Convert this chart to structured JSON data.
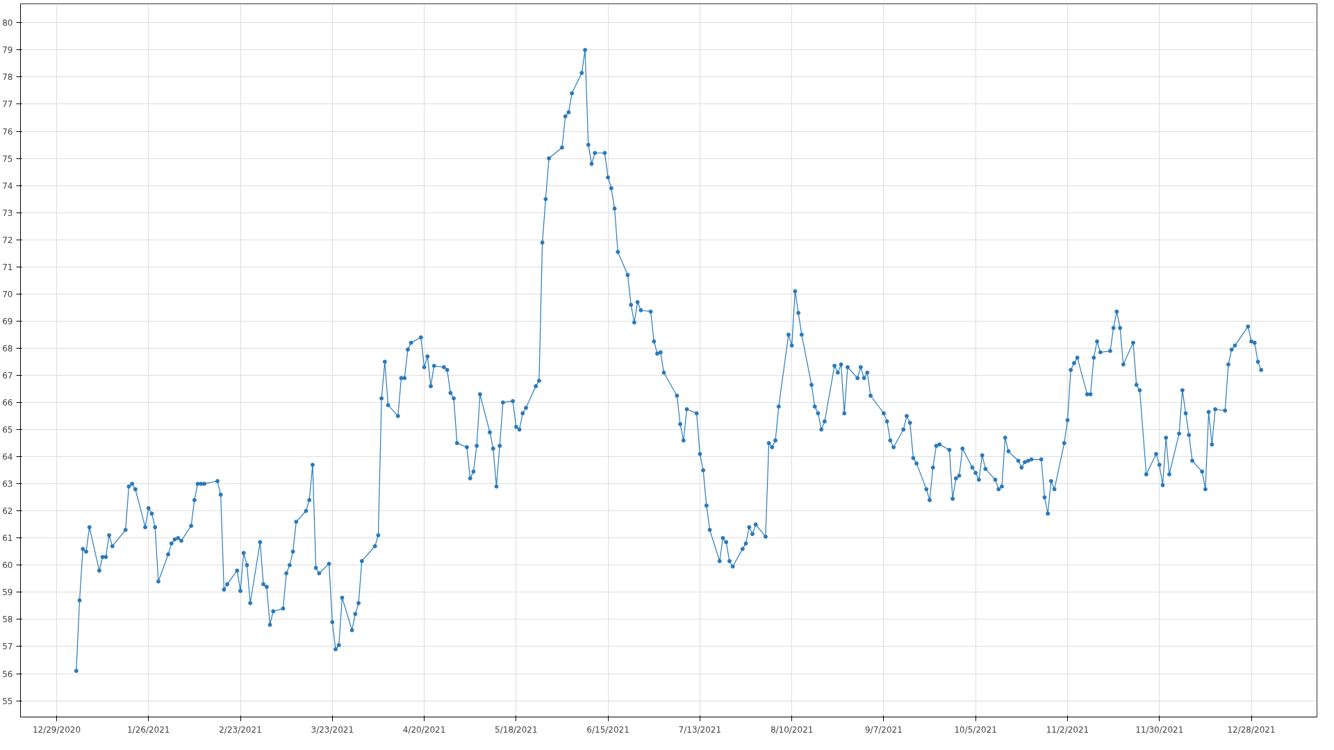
{
  "chart_data": {
    "type": "line",
    "marker": "circle",
    "line_style": "solid",
    "grid": true,
    "xlim": [
      "2020-12-18",
      "2022-01-17"
    ],
    "ylim": [
      54.4,
      80.7
    ],
    "yticks": [
      55,
      56,
      57,
      58,
      59,
      60,
      61,
      62,
      63,
      64,
      65,
      66,
      67,
      68,
      69,
      70,
      71,
      72,
      73,
      74,
      75,
      76,
      77,
      78,
      79,
      80
    ],
    "xticks": [
      {
        "value": "2020-12-29",
        "label": "12/29/2020"
      },
      {
        "value": "2021-01-26",
        "label": "1/26/2021"
      },
      {
        "value": "2021-02-23",
        "label": "2/23/2021"
      },
      {
        "value": "2021-03-23",
        "label": "3/23/2021"
      },
      {
        "value": "2021-04-20",
        "label": "4/20/2021"
      },
      {
        "value": "2021-05-18",
        "label": "5/18/2021"
      },
      {
        "value": "2021-06-15",
        "label": "6/15/2021"
      },
      {
        "value": "2021-07-13",
        "label": "7/13/2021"
      },
      {
        "value": "2021-08-10",
        "label": "8/10/2021"
      },
      {
        "value": "2021-09-07",
        "label": "9/7/2021"
      },
      {
        "value": "2021-10-05",
        "label": "10/5/2021"
      },
      {
        "value": "2021-11-02",
        "label": "11/2/2021"
      },
      {
        "value": "2021-11-30",
        "label": "11/30/2021"
      },
      {
        "value": "2021-12-28",
        "label": "12/28/2021"
      }
    ],
    "series": [
      {
        "color": "#2a7ab9",
        "x": [
          "2021-01-04",
          "2021-01-05",
          "2021-01-06",
          "2021-01-07",
          "2021-01-08",
          "2021-01-11",
          "2021-01-12",
          "2021-01-13",
          "2021-01-14",
          "2021-01-15",
          "2021-01-19",
          "2021-01-20",
          "2021-01-21",
          "2021-01-22",
          "2021-01-25",
          "2021-01-26",
          "2021-01-27",
          "2021-01-28",
          "2021-01-29",
          "2021-02-01",
          "2021-02-02",
          "2021-02-03",
          "2021-02-04",
          "2021-02-05",
          "2021-02-08",
          "2021-02-09",
          "2021-02-10",
          "2021-02-11",
          "2021-02-12",
          "2021-02-16",
          "2021-02-17",
          "2021-02-18",
          "2021-02-19",
          "2021-02-22",
          "2021-02-23",
          "2021-02-24",
          "2021-02-25",
          "2021-02-26",
          "2021-03-01",
          "2021-03-02",
          "2021-03-03",
          "2021-03-04",
          "2021-03-05",
          "2021-03-08",
          "2021-03-09",
          "2021-03-10",
          "2021-03-11",
          "2021-03-12",
          "2021-03-15",
          "2021-03-16",
          "2021-03-17",
          "2021-03-18",
          "2021-03-19",
          "2021-03-22",
          "2021-03-23",
          "2021-03-24",
          "2021-03-25",
          "2021-03-26",
          "2021-03-29",
          "2021-03-30",
          "2021-03-31",
          "2021-04-01",
          "2021-04-05",
          "2021-04-06",
          "2021-04-07",
          "2021-04-08",
          "2021-04-09",
          "2021-04-12",
          "2021-04-13",
          "2021-04-14",
          "2021-04-15",
          "2021-04-16",
          "2021-04-19",
          "2021-04-20",
          "2021-04-21",
          "2021-04-22",
          "2021-04-23",
          "2021-04-26",
          "2021-04-27",
          "2021-04-28",
          "2021-04-29",
          "2021-04-30",
          "2021-05-03",
          "2021-05-04",
          "2021-05-05",
          "2021-05-06",
          "2021-05-07",
          "2021-05-10",
          "2021-05-11",
          "2021-05-12",
          "2021-05-13",
          "2021-05-14",
          "2021-05-17",
          "2021-05-18",
          "2021-05-19",
          "2021-05-20",
          "2021-05-21",
          "2021-05-24",
          "2021-05-25",
          "2021-05-26",
          "2021-05-27",
          "2021-05-28",
          "2021-06-01",
          "2021-06-02",
          "2021-06-03",
          "2021-06-04",
          "2021-06-07",
          "2021-06-08",
          "2021-06-09",
          "2021-06-10",
          "2021-06-11",
          "2021-06-14",
          "2021-06-15",
          "2021-06-16",
          "2021-06-17",
          "2021-06-18",
          "2021-06-21",
          "2021-06-22",
          "2021-06-23",
          "2021-06-24",
          "2021-06-25",
          "2021-06-28",
          "2021-06-29",
          "2021-06-30",
          "2021-07-01",
          "2021-07-02",
          "2021-07-06",
          "2021-07-07",
          "2021-07-08",
          "2021-07-09",
          "2021-07-12",
          "2021-07-13",
          "2021-07-14",
          "2021-07-15",
          "2021-07-16",
          "2021-07-19",
          "2021-07-20",
          "2021-07-21",
          "2021-07-22",
          "2021-07-23",
          "2021-07-26",
          "2021-07-27",
          "2021-07-28",
          "2021-07-29",
          "2021-07-30",
          "2021-08-02",
          "2021-08-03",
          "2021-08-04",
          "2021-08-05",
          "2021-08-06",
          "2021-08-09",
          "2021-08-10",
          "2021-08-11",
          "2021-08-12",
          "2021-08-13",
          "2021-08-16",
          "2021-08-17",
          "2021-08-18",
          "2021-08-19",
          "2021-08-20",
          "2021-08-23",
          "2021-08-24",
          "2021-08-25",
          "2021-08-26",
          "2021-08-27",
          "2021-08-30",
          "2021-08-31",
          "2021-09-01",
          "2021-09-02",
          "2021-09-03",
          "2021-09-07",
          "2021-09-08",
          "2021-09-09",
          "2021-09-10",
          "2021-09-13",
          "2021-09-14",
          "2021-09-15",
          "2021-09-16",
          "2021-09-17",
          "2021-09-20",
          "2021-09-21",
          "2021-09-22",
          "2021-09-23",
          "2021-09-24",
          "2021-09-27",
          "2021-09-28",
          "2021-09-29",
          "2021-09-30",
          "2021-10-01",
          "2021-10-04",
          "2021-10-05",
          "2021-10-06",
          "2021-10-07",
          "2021-10-08",
          "2021-10-11",
          "2021-10-12",
          "2021-10-13",
          "2021-10-14",
          "2021-10-15",
          "2021-10-18",
          "2021-10-19",
          "2021-10-20",
          "2021-10-21",
          "2021-10-22",
          "2021-10-25",
          "2021-10-26",
          "2021-10-27",
          "2021-10-28",
          "2021-10-29",
          "2021-11-01",
          "2021-11-02",
          "2021-11-03",
          "2021-11-04",
          "2021-11-05",
          "2021-11-08",
          "2021-11-09",
          "2021-11-10",
          "2021-11-11",
          "2021-11-12",
          "2021-11-15",
          "2021-11-16",
          "2021-11-17",
          "2021-11-18",
          "2021-11-19",
          "2021-11-22",
          "2021-11-23",
          "2021-11-24",
          "2021-11-26",
          "2021-11-29",
          "2021-11-30",
          "2021-12-01",
          "2021-12-02",
          "2021-12-03",
          "2021-12-06",
          "2021-12-07",
          "2021-12-08",
          "2021-12-09",
          "2021-12-10",
          "2021-12-13",
          "2021-12-14",
          "2021-12-15",
          "2021-12-16",
          "2021-12-17",
          "2021-12-20",
          "2021-12-21",
          "2021-12-22",
          "2021-12-23",
          "2021-12-27",
          "2021-12-28",
          "2021-12-29",
          "2021-12-30",
          "2021-12-31"
        ],
        "values": [
          56.1,
          58.7,
          60.6,
          60.5,
          61.4,
          59.8,
          60.3,
          60.3,
          61.1,
          60.7,
          61.3,
          62.9,
          63.0,
          62.8,
          61.4,
          62.1,
          61.9,
          61.4,
          59.4,
          60.4,
          60.8,
          60.95,
          61.0,
          60.9,
          61.45,
          62.4,
          63.0,
          63.0,
          63.0,
          63.1,
          62.6,
          59.1,
          59.3,
          59.8,
          59.05,
          60.45,
          60.0,
          58.6,
          60.85,
          59.3,
          59.2,
          57.8,
          58.3,
          58.4,
          59.7,
          60.0,
          60.5,
          61.6,
          62.0,
          62.4,
          63.7,
          59.9,
          59.7,
          60.05,
          57.9,
          56.9,
          57.05,
          58.8,
          57.6,
          58.2,
          58.6,
          60.15,
          60.7,
          61.1,
          66.15,
          67.5,
          65.9,
          65.5,
          66.9,
          66.9,
          67.95,
          68.2,
          68.4,
          67.3,
          67.7,
          66.6,
          67.35,
          67.3,
          67.2,
          66.35,
          66.15,
          64.5,
          64.35,
          63.2,
          63.45,
          64.4,
          66.3,
          64.9,
          64.3,
          62.9,
          64.4,
          66.0,
          66.05,
          65.1,
          65.0,
          65.6,
          65.8,
          66.6,
          66.8,
          71.9,
          73.5,
          75.0,
          75.4,
          76.55,
          76.7,
          77.4,
          78.15,
          79.0,
          75.5,
          74.8,
          75.2,
          75.2,
          74.3,
          73.9,
          73.15,
          71.55,
          70.7,
          69.6,
          68.95,
          69.7,
          69.4,
          69.35,
          68.25,
          67.8,
          67.85,
          67.1,
          66.25,
          65.2,
          64.6,
          65.75,
          65.6,
          64.1,
          63.5,
          62.2,
          61.3,
          60.15,
          61.0,
          60.85,
          60.15,
          59.95,
          60.6,
          60.8,
          61.4,
          61.15,
          61.5,
          61.05,
          64.5,
          64.35,
          64.6,
          65.85,
          68.5,
          68.1,
          70.1,
          69.3,
          68.5,
          66.65,
          65.85,
          65.6,
          65.0,
          65.3,
          67.35,
          67.1,
          67.4,
          65.6,
          67.3,
          66.9,
          67.3,
          66.9,
          67.1,
          66.25,
          65.6,
          65.3,
          64.6,
          64.35,
          65.0,
          65.5,
          65.25,
          63.95,
          63.75,
          62.8,
          62.4,
          63.6,
          64.4,
          64.45,
          64.25,
          62.45,
          63.2,
          63.3,
          64.3,
          63.6,
          63.4,
          63.15,
          64.05,
          63.55,
          63.15,
          62.8,
          62.9,
          64.7,
          64.2,
          63.85,
          63.6,
          63.8,
          63.85,
          63.9,
          63.9,
          62.5,
          61.9,
          63.1,
          62.8,
          64.5,
          65.35,
          67.2,
          67.45,
          67.65,
          66.3,
          66.3,
          67.65,
          68.25,
          67.85,
          67.9,
          68.75,
          69.35,
          68.75,
          67.4,
          68.2,
          66.65,
          66.45,
          63.35,
          64.1,
          63.7,
          62.95,
          64.7,
          63.35,
          64.85,
          66.45,
          65.6,
          64.8,
          63.85,
          63.45,
          62.8,
          65.65,
          64.45,
          65.75,
          65.7,
          67.4,
          67.95,
          68.1,
          68.8,
          68.25,
          68.2,
          67.5,
          67.2
        ]
      }
    ]
  }
}
